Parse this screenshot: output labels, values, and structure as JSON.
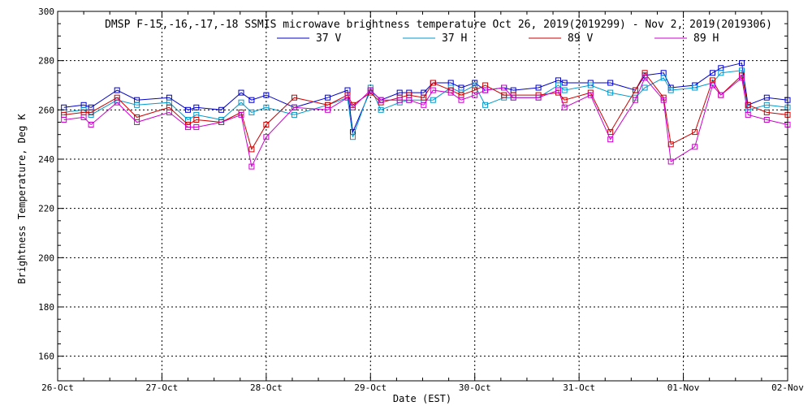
{
  "chart_data": {
    "type": "line",
    "title": "DMSP F-15,-16,-17,-18 SSMIS microwave brightness temperature Oct 26, 2019(2019299) - Nov  2, 2019(2019306)",
    "xlabel": "Date (EST)",
    "ylabel": "Brightness Temperature, Deg K",
    "x_ticks": [
      "26-Oct",
      "27-Oct",
      "28-Oct",
      "29-Oct",
      "30-Oct",
      "31-Oct",
      "01-Nov",
      "02-Nov"
    ],
    "xlim": [
      0,
      7
    ],
    "ylim": [
      150,
      300
    ],
    "y_ticks": [
      160,
      180,
      200,
      220,
      240,
      260,
      280,
      300
    ],
    "grid": true,
    "legend_position": "top-center",
    "series": [
      {
        "name": "37 V",
        "color": "#0000c8",
        "x": [
          0.06,
          0.25,
          0.32,
          0.57,
          0.76,
          1.07,
          1.25,
          1.33,
          1.57,
          1.76,
          1.86,
          2.0,
          2.27,
          2.59,
          2.78,
          2.83,
          3.0,
          3.1,
          3.28,
          3.37,
          3.51,
          3.6,
          3.77,
          3.87,
          4.0,
          4.1,
          4.28,
          4.37,
          4.61,
          4.8,
          4.86,
          5.11,
          5.3,
          5.54,
          5.63,
          5.81,
          5.88,
          6.11,
          6.28,
          6.36,
          6.56,
          6.62,
          6.8,
          7.0
        ],
        "y": [
          261,
          262,
          261,
          268,
          264,
          265,
          260,
          261,
          260,
          267,
          264,
          266,
          261,
          265,
          268,
          251,
          268,
          264,
          267,
          267,
          267,
          271,
          271,
          269,
          271,
          268,
          269,
          268,
          269,
          272,
          271,
          271,
          271,
          268,
          274,
          275,
          269,
          270,
          275,
          277,
          279,
          262,
          265,
          264
        ]
      },
      {
        "name": "37 H",
        "color": "#0099cc",
        "x": [
          0.06,
          0.25,
          0.32,
          0.57,
          0.76,
          1.07,
          1.25,
          1.33,
          1.57,
          1.76,
          1.86,
          2.0,
          2.27,
          2.59,
          2.78,
          2.83,
          3.0,
          3.1,
          3.28,
          3.37,
          3.51,
          3.6,
          3.77,
          3.87,
          4.0,
          4.1,
          4.28,
          4.37,
          4.61,
          4.8,
          4.86,
          5.11,
          5.3,
          5.54,
          5.63,
          5.81,
          5.88,
          6.11,
          6.28,
          6.36,
          6.56,
          6.62,
          6.8,
          7.0
        ],
        "y": [
          259,
          260,
          258,
          264,
          262,
          263,
          256,
          258,
          256,
          263,
          259,
          261,
          258,
          262,
          265,
          249,
          269,
          260,
          263,
          264,
          264,
          264,
          269,
          267,
          270,
          262,
          265,
          265,
          265,
          270,
          268,
          270,
          267,
          265,
          269,
          273,
          268,
          269,
          271,
          275,
          276,
          260,
          262,
          261
        ]
      },
      {
        "name": "89 V",
        "color": "#cc0000",
        "x": [
          0.06,
          0.25,
          0.32,
          0.57,
          0.76,
          1.07,
          1.25,
          1.33,
          1.57,
          1.76,
          1.86,
          2.0,
          2.27,
          2.59,
          2.78,
          2.83,
          3.0,
          3.1,
          3.28,
          3.37,
          3.51,
          3.6,
          3.77,
          3.87,
          4.0,
          4.1,
          4.28,
          4.37,
          4.61,
          4.8,
          4.86,
          5.11,
          5.3,
          5.54,
          5.63,
          5.81,
          5.88,
          6.11,
          6.28,
          6.36,
          6.56,
          6.62,
          6.8,
          7.0
        ],
        "y": [
          258,
          259,
          259,
          265,
          257,
          261,
          254,
          256,
          255,
          259,
          244,
          254,
          265,
          262,
          266,
          262,
          267,
          263,
          265,
          266,
          265,
          271,
          268,
          266,
          268,
          270,
          266,
          266,
          266,
          267,
          264,
          267,
          251,
          268,
          275,
          265,
          246,
          251,
          272,
          266,
          274,
          262,
          259,
          258
        ]
      },
      {
        "name": "89 H",
        "color": "#cc00cc",
        "x": [
          0.06,
          0.25,
          0.32,
          0.57,
          0.76,
          1.07,
          1.25,
          1.33,
          1.57,
          1.76,
          1.86,
          2.0,
          2.27,
          2.59,
          2.78,
          2.83,
          3.0,
          3.1,
          3.28,
          3.37,
          3.51,
          3.6,
          3.77,
          3.87,
          4.0,
          4.1,
          4.28,
          4.37,
          4.61,
          4.8,
          4.86,
          5.11,
          5.3,
          5.54,
          5.63,
          5.81,
          5.88,
          6.11,
          6.28,
          6.36,
          6.56,
          6.62,
          6.8,
          7.0
        ],
        "y": [
          256,
          257,
          254,
          263,
          255,
          259,
          253,
          253,
          255,
          258,
          237,
          249,
          261,
          260,
          265,
          261,
          268,
          264,
          264,
          264,
          262,
          268,
          267,
          264,
          266,
          268,
          269,
          265,
          265,
          268,
          261,
          266,
          248,
          264,
          273,
          264,
          239,
          245,
          270,
          266,
          273,
          258,
          256,
          254
        ]
      }
    ]
  }
}
